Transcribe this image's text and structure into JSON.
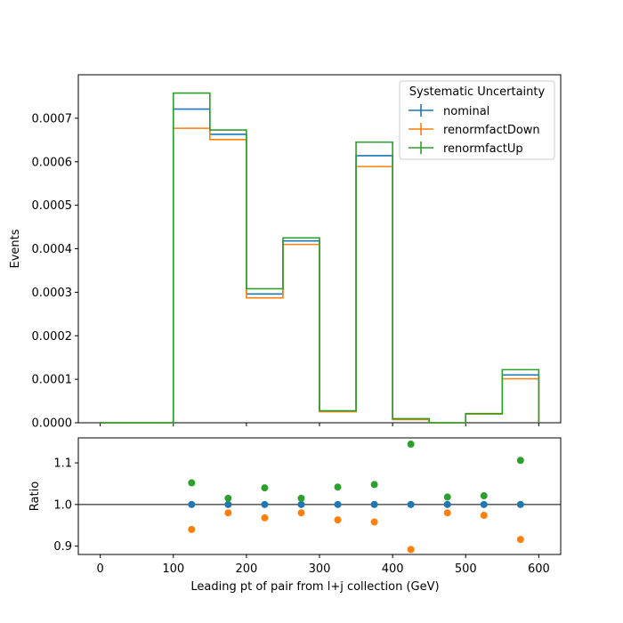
{
  "chart_data": [
    {
      "type": "histogram-step",
      "title": "",
      "xlabel": "",
      "ylabel": "Events",
      "xlim": [
        -30,
        630
      ],
      "ylim": [
        0,
        0.0008
      ],
      "grid": false,
      "bin_edges": [
        0,
        50,
        100,
        150,
        200,
        250,
        300,
        350,
        400,
        450,
        500,
        550,
        600
      ],
      "xticks": [
        0,
        100,
        200,
        300,
        400,
        500,
        600
      ],
      "yticks": [
        0.0,
        0.0001,
        0.0002,
        0.0003,
        0.0004,
        0.0005,
        0.0006,
        0.0007
      ],
      "ytick_labels": [
        "0.0000",
        "0.0001",
        "0.0002",
        "0.0003",
        "0.0004",
        "0.0005",
        "0.0006",
        "0.0007"
      ],
      "legend": {
        "title": "Systematic Uncertainty",
        "placement": "top-right"
      },
      "series": [
        {
          "name": "nominal",
          "color": "#1f77b4",
          "values": [
            0,
            0,
            0.000721,
            0.000663,
            0.000296,
            0.000418,
            2.65e-05,
            0.000614,
            8.2e-06,
            0,
            2.05e-05,
            0.00011
          ]
        },
        {
          "name": "renormfactDown",
          "color": "#ff7f0e",
          "values": [
            0,
            0,
            0.000677,
            0.000651,
            0.000287,
            0.00041,
            2.55e-05,
            0.000589,
            7.3e-06,
            0,
            2e-05,
            0.000101
          ]
        },
        {
          "name": "renormfactUp",
          "color": "#2ca02c",
          "values": [
            0,
            0,
            0.000758,
            0.000673,
            0.000308,
            0.000425,
            2.75e-05,
            0.000645,
            9.4e-06,
            0,
            2.1e-05,
            0.000122
          ]
        }
      ]
    },
    {
      "type": "scatter",
      "title": "",
      "xlabel": "Leading pt of pair from l+j collection (GeV)",
      "ylabel": "Ratio",
      "xlim": [
        -30,
        630
      ],
      "ylim": [
        0.88,
        1.16
      ],
      "grid": false,
      "xticks": [
        0,
        100,
        200,
        300,
        400,
        500,
        600
      ],
      "yticks": [
        0.9,
        1.0,
        1.1
      ],
      "ytick_labels": [
        "0.9",
        "1.0",
        "1.1"
      ],
      "reference_line": 1.0,
      "x": [
        125,
        175,
        225,
        275,
        325,
        375,
        425,
        475,
        525,
        575
      ],
      "series": [
        {
          "name": "nominal",
          "color": "#1f77b4",
          "values": [
            1.0,
            1.0,
            1.0,
            1.0,
            1.0,
            1.0,
            1.0,
            1.0,
            1.0,
            1.0
          ]
        },
        {
          "name": "renormfactDown",
          "color": "#ff7f0e",
          "values": [
            0.94,
            0.98,
            0.968,
            0.98,
            0.963,
            0.958,
            0.892,
            0.98,
            0.974,
            0.916
          ]
        },
        {
          "name": "renormfactUp",
          "color": "#2ca02c",
          "values": [
            1.052,
            1.015,
            1.04,
            1.015,
            1.042,
            1.048,
            1.145,
            1.018,
            1.021,
            1.106
          ]
        }
      ]
    }
  ]
}
